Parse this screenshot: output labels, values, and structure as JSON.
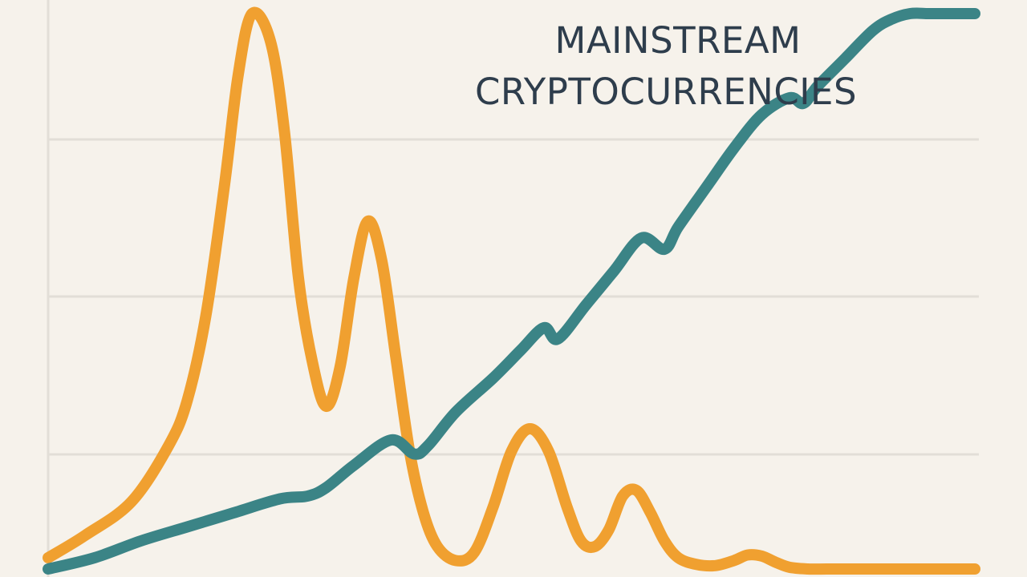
{
  "chart_data": {
    "type": "line",
    "title_lines": [
      "MAINSTREAM",
      "CRYPTOCURRENCIES"
    ],
    "xlabel": "",
    "ylabel": "",
    "xlim": [
      0,
      100
    ],
    "ylim": [
      0,
      100
    ],
    "grid": true,
    "legend": "none",
    "series": [
      {
        "color": "#f0a030",
        "x": [
          0,
          4,
          9,
          13,
          15,
          17,
          19,
          20.5,
          22,
          24,
          25.5,
          27,
          28.5,
          30,
          31.5,
          33,
          34.5,
          36,
          37.5,
          39,
          40.5,
          42,
          44,
          46,
          48,
          50,
          52,
          54,
          56,
          57.5,
          59,
          60.5,
          62,
          63.5,
          65,
          66.5,
          68,
          70,
          72,
          74,
          75.5,
          77,
          78.5,
          80,
          82,
          84,
          86,
          88,
          90,
          92,
          94,
          96,
          98,
          100
        ],
        "y": [
          2,
          6,
          12,
          22,
          30,
          45,
          68,
          88,
          99,
          94,
          78,
          52,
          37,
          29,
          36,
          52,
          62,
          55,
          38,
          21,
          10,
          4,
          1.5,
          3,
          11,
          21,
          25,
          21,
          11,
          5,
          4,
          7,
          13,
          14,
          10,
          5,
          2,
          0.8,
          0.6,
          1.5,
          2.5,
          2.3,
          1.2,
          0.3,
          0,
          0,
          0,
          0,
          0,
          0,
          0,
          0,
          0,
          0
        ]
      },
      {
        "color": "#3b8486",
        "x": [
          0,
          5,
          10,
          15,
          20,
          25,
          28,
          30,
          33,
          37,
          39.5,
          41,
          44,
          48,
          51,
          53.5,
          55,
          58,
          61,
          64,
          66.5,
          68,
          71,
          74,
          77,
          80,
          81.5,
          83,
          86,
          89,
          91,
          93,
          95,
          97,
          99,
          100
        ],
        "y": [
          0,
          2,
          5,
          7.5,
          10,
          12.5,
          13,
          14.5,
          18.5,
          23,
          20.5,
          22,
          28,
          34,
          39,
          43,
          41,
          47,
          53,
          59,
          57,
          61,
          68,
          75,
          81,
          84,
          83,
          86,
          91,
          96,
          98,
          99,
          99,
          99,
          99,
          99
        ]
      }
    ]
  }
}
